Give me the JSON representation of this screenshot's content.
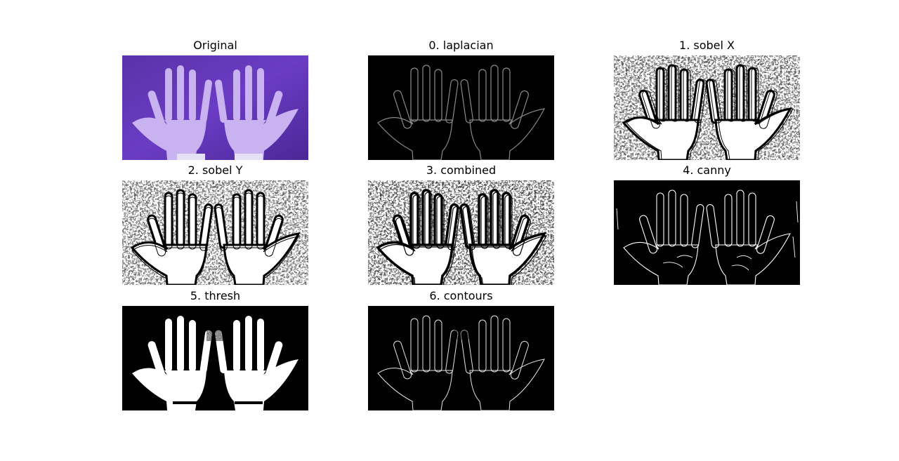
{
  "figure": {
    "panels": [
      {
        "title": "Original",
        "image": "original-color-hands-photo"
      },
      {
        "title": "0. laplacian",
        "image": "laplacian-edges-image"
      },
      {
        "title": "1. sobel X",
        "image": "sobel-x-gradient-image"
      },
      {
        "title": "2. sobel Y",
        "image": "sobel-y-gradient-image"
      },
      {
        "title": "3. combined",
        "image": "combined-gradient-image"
      },
      {
        "title": "4. canny",
        "image": "canny-edges-image"
      },
      {
        "title": "5. thresh",
        "image": "threshold-binary-image"
      },
      {
        "title": "6. contours",
        "image": "contours-outline-image"
      }
    ]
  }
}
